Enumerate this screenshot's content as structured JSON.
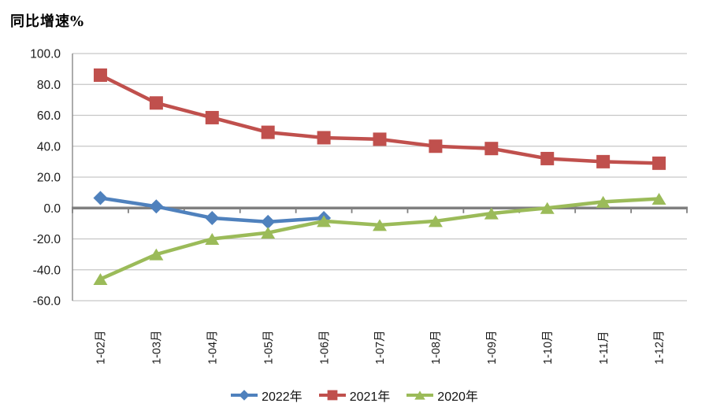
{
  "title": "同比增速%",
  "colors": {
    "background": "#FFFFFF",
    "gridline": "#C6C6C6",
    "axis_line": "#898989",
    "zero_line": "#808080",
    "label_text": "#1A1A1A",
    "series_blue": "#4F81BD",
    "series_red": "#C0504D",
    "series_green": "#9BBB59"
  },
  "chart_data": {
    "type": "line",
    "title": "同比增速%",
    "xlabel": "",
    "ylabel": "同比增速%",
    "categories": [
      "1-02月",
      "1-03月",
      "1-04月",
      "1-05月",
      "1-06月",
      "1-07月",
      "1-08月",
      "1-09月",
      "1-10月",
      "1-11月",
      "1-12月"
    ],
    "series": [
      {
        "name": "2022年",
        "color": "#4F81BD",
        "marker": "diamond",
        "values": [
          6.5,
          1,
          -6.5,
          -9,
          -6.5,
          null,
          null,
          null,
          null,
          null,
          null
        ]
      },
      {
        "name": "2021年",
        "color": "#C0504D",
        "marker": "square",
        "values": [
          86,
          68,
          58.5,
          49,
          45.5,
          44.5,
          40,
          38.5,
          32,
          30,
          29
        ]
      },
      {
        "name": "2020年",
        "color": "#9BBB59",
        "marker": "triangle",
        "values": [
          -46,
          -30,
          -20,
          -16,
          -8.5,
          -11,
          -8.5,
          -3.5,
          0,
          4,
          6
        ]
      }
    ],
    "ylim": [
      -60,
      100
    ],
    "ytick_interval": 20,
    "ytick_labels": [
      "100.0",
      "80.0",
      "60.0",
      "40.0",
      "20.0",
      "0.0",
      "-20.0",
      "-40.0",
      "-60.0"
    ],
    "grid": true,
    "legend_position": "bottom"
  }
}
